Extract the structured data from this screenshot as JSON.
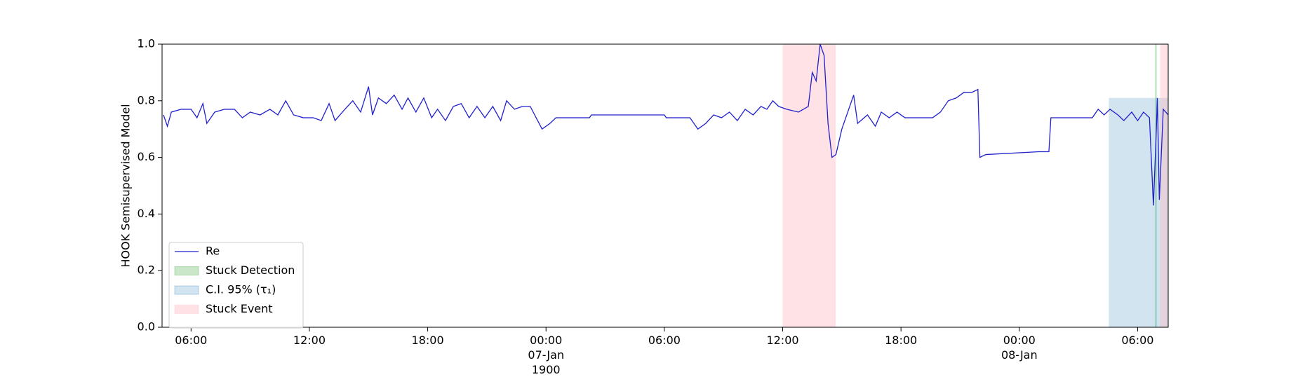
{
  "chart_data": {
    "type": "line",
    "y_label": "HOOK Semisupervised Model",
    "xlim": [
      4.53,
      55.55
    ],
    "xticks": [
      {
        "value": 6,
        "label": "06:00"
      },
      {
        "value": 12,
        "label": "12:00"
      },
      {
        "value": 18,
        "label": "18:00"
      },
      {
        "value": 24,
        "label": "00:00\n07-Jan\n1900"
      },
      {
        "value": 30,
        "label": "06:00"
      },
      {
        "value": 36,
        "label": "12:00"
      },
      {
        "value": 42,
        "label": "18:00"
      },
      {
        "value": 48,
        "label": "00:00\n08-Jan"
      },
      {
        "value": 54,
        "label": "06:00"
      }
    ],
    "ylim": [
      0,
      1
    ],
    "yticks": [
      {
        "value": 0,
        "label": "0.0"
      },
      {
        "value": 0.2,
        "label": "0.2"
      },
      {
        "value": 0.4,
        "label": "0.4"
      },
      {
        "value": 0.6,
        "label": "0.6"
      },
      {
        "value": 0.8,
        "label": "0.8"
      },
      {
        "value": 1,
        "label": "1.0"
      }
    ],
    "legend": "lower left",
    "series": [
      {
        "name": "Re",
        "color": "#2020cc",
        "x": [
          4.6,
          4.8,
          5.0,
          5.5,
          6.0,
          6.3,
          6.6,
          6.8,
          7.2,
          7.7,
          8.2,
          8.6,
          9.0,
          9.5,
          10.0,
          10.4,
          10.8,
          11.2,
          11.7,
          12.2,
          12.6,
          13.0,
          13.3,
          13.8,
          14.2,
          14.6,
          15.0,
          15.2,
          15.5,
          15.9,
          16.3,
          16.7,
          17.0,
          17.4,
          17.8,
          18.2,
          18.5,
          18.9,
          19.3,
          19.7,
          20.1,
          20.5,
          20.9,
          21.3,
          21.7,
          22.0,
          22.4,
          22.8,
          23.2,
          23.5,
          23.8,
          24.2,
          24.5,
          26.2,
          26.3,
          30.0,
          30.1,
          31.3,
          31.7,
          32.1,
          32.5,
          32.9,
          33.3,
          33.7,
          34.1,
          34.5,
          34.9,
          35.2,
          35.5,
          35.8,
          36.2,
          36.8,
          37.3,
          37.5,
          37.7,
          37.9,
          38.1,
          38.3,
          38.5,
          38.7,
          39.0,
          39.3,
          39.6,
          39.8,
          40.3,
          40.7,
          41.0,
          41.4,
          41.8,
          42.2,
          43.0,
          43.6,
          44.0,
          44.4,
          44.8,
          45.2,
          45.6,
          45.9,
          46.0,
          46.3,
          49.0,
          49.5,
          49.6,
          51.7,
          52.0,
          52.3,
          52.6,
          53.0,
          53.3,
          53.7,
          54.0,
          54.3,
          54.6,
          54.8,
          54.95,
          55.0,
          55.1,
          55.3,
          55.55
        ],
        "values": [
          0.75,
          0.71,
          0.76,
          0.77,
          0.77,
          0.74,
          0.79,
          0.72,
          0.76,
          0.77,
          0.77,
          0.74,
          0.76,
          0.75,
          0.77,
          0.75,
          0.8,
          0.75,
          0.74,
          0.74,
          0.73,
          0.79,
          0.73,
          0.77,
          0.8,
          0.76,
          0.85,
          0.75,
          0.81,
          0.79,
          0.82,
          0.77,
          0.81,
          0.76,
          0.81,
          0.74,
          0.77,
          0.73,
          0.78,
          0.79,
          0.74,
          0.78,
          0.74,
          0.78,
          0.73,
          0.8,
          0.77,
          0.78,
          0.78,
          0.74,
          0.7,
          0.72,
          0.74,
          0.74,
          0.75,
          0.75,
          0.74,
          0.74,
          0.7,
          0.72,
          0.75,
          0.74,
          0.76,
          0.73,
          0.77,
          0.75,
          0.78,
          0.77,
          0.8,
          0.78,
          0.77,
          0.76,
          0.78,
          0.9,
          0.87,
          1.0,
          0.96,
          0.72,
          0.6,
          0.61,
          0.7,
          0.76,
          0.82,
          0.72,
          0.75,
          0.71,
          0.76,
          0.74,
          0.76,
          0.74,
          0.74,
          0.74,
          0.76,
          0.8,
          0.81,
          0.83,
          0.83,
          0.84,
          0.6,
          0.61,
          0.62,
          0.62,
          0.74,
          0.74,
          0.77,
          0.75,
          0.77,
          0.75,
          0.73,
          0.76,
          0.73,
          0.76,
          0.74,
          0.43,
          0.7,
          0.81,
          0.45,
          0.77,
          0.75
        ]
      }
    ],
    "spans": [
      {
        "name": "Stuck Detection",
        "kind": "vline",
        "color": "#2ca02c",
        "x": [
          54.93
        ]
      },
      {
        "name": "C.I. 95% (τ₁)",
        "kind": "band",
        "color": "#1f77b4",
        "ranges": [
          [
            52.54,
            55.55
          ]
        ],
        "ymax": 0.81
      },
      {
        "name": "Stuck Event",
        "kind": "band",
        "color": "#ffb6c1",
        "ranges": [
          [
            36.0,
            38.69
          ],
          [
            55.14,
            55.55
          ]
        ]
      }
    ]
  }
}
